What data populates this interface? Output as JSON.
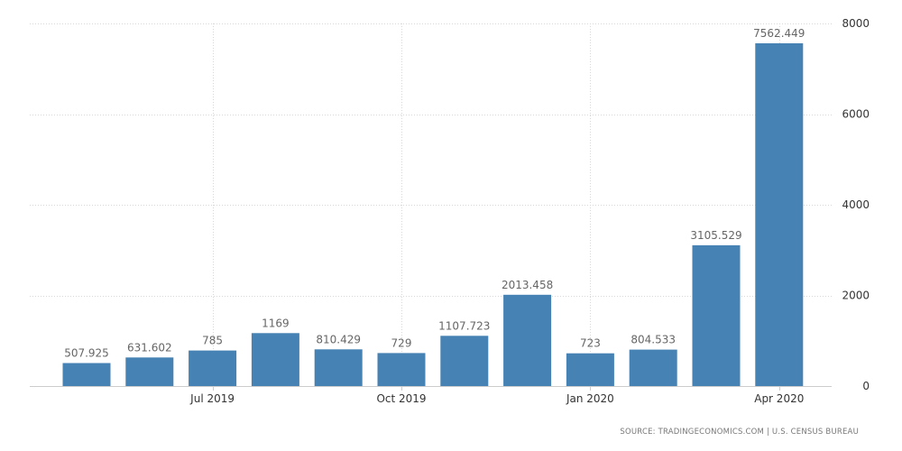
{
  "chart_data": {
    "type": "bar",
    "x": [
      "2019-05",
      "2019-06",
      "2019-07",
      "2019-08",
      "2019-09",
      "2019-10",
      "2019-11",
      "2019-12",
      "2020-01",
      "2020-02",
      "2020-03",
      "2020-04"
    ],
    "values": [
      507.925,
      631.602,
      785,
      1169,
      810.429,
      729,
      1107.723,
      2013.458,
      723,
      804.533,
      3105.529,
      7562.449
    ],
    "data_labels": [
      "507.925",
      "631.602",
      "785",
      "1169",
      "810.429",
      "729",
      "1107.723",
      "2013.458",
      "723",
      "804.533",
      "3105.529",
      "7562.449"
    ],
    "x_ticks": [
      {
        "x": "2019-07",
        "label": "Jul 2019"
      },
      {
        "x": "2019-10",
        "label": "Oct 2019"
      },
      {
        "x": "2020-01",
        "label": "Jan 2020"
      },
      {
        "x": "2020-04",
        "label": "Apr 2020"
      }
    ],
    "y_ticks": [
      0,
      2000,
      4000,
      6000,
      8000
    ],
    "ylim": [
      0,
      8000
    ],
    "y_axis_side": "right",
    "grid": true,
    "bar_color": "#4682b4",
    "title": "",
    "xlabel": "",
    "ylabel": ""
  },
  "source": "SOURCE: TRADINGECONOMICS.COM | U.S. CENSUS BUREAU"
}
